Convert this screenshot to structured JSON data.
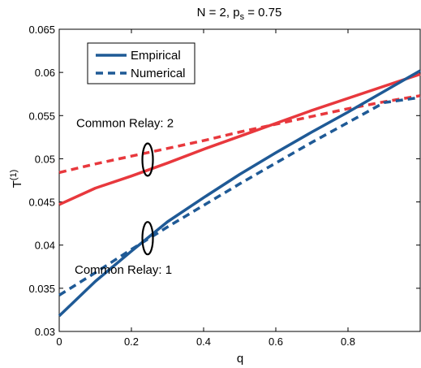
{
  "chart_data": {
    "type": "line",
    "title": "N = 2, p",
    "title_subscript": "s",
    "title_suffix": " = 0.75",
    "xlabel": "q",
    "ylabel": "T",
    "ylabel_superscript": "(1)",
    "xlim": [
      0,
      1
    ],
    "ylim": [
      0.03,
      0.065
    ],
    "xticks": [
      0,
      0.2,
      0.4,
      0.6,
      0.8
    ],
    "xtick_labels": [
      "0",
      "0.2",
      "0.4",
      "0.6",
      "0.8"
    ],
    "yticks": [
      0.03,
      0.035,
      0.04,
      0.045,
      0.05,
      0.055,
      0.06,
      0.065
    ],
    "ytick_labels": [
      "0.03",
      "0.035",
      "0.04",
      "0.045",
      "0.05",
      "0.055",
      "0.06",
      "0.065"
    ],
    "grid": false,
    "legend_position": "top-left",
    "legend": [
      {
        "label": "Empirical",
        "style": "solid"
      },
      {
        "label": "Numerical",
        "style": "dashed"
      }
    ],
    "annotations": [
      {
        "text": "Common Relay: 2",
        "target_x": 0.245,
        "target_y": 0.0499
      },
      {
        "text": "Common Relay: 1",
        "target_x": 0.245,
        "target_y": 0.0408
      }
    ],
    "series": [
      {
        "style": "solid",
        "color": "#e8383d",
        "x": [
          0,
          0.1,
          0.2,
          0.3,
          0.4,
          0.5,
          0.6,
          0.7,
          0.8,
          0.9,
          1.0
        ],
        "y": [
          0.0447,
          0.0466,
          0.048,
          0.0495,
          0.0511,
          0.0526,
          0.0541,
          0.0556,
          0.057,
          0.0584,
          0.0598
        ]
      },
      {
        "style": "dashed",
        "color": "#e8383d",
        "x": [
          0,
          0.1,
          0.2,
          0.3,
          0.4,
          0.5,
          0.6,
          0.7,
          0.8,
          0.9,
          1.0
        ],
        "y": [
          0.0484,
          0.0494,
          0.0503,
          0.0512,
          0.0521,
          0.0531,
          0.054,
          0.0549,
          0.0558,
          0.0566,
          0.0573
        ]
      },
      {
        "style": "solid",
        "color": "#1f5a96",
        "x": [
          0,
          0.1,
          0.2,
          0.3,
          0.4,
          0.5,
          0.6,
          0.7,
          0.8,
          0.9,
          1.0
        ],
        "y": [
          0.0318,
          0.0358,
          0.0393,
          0.0427,
          0.0455,
          0.0482,
          0.0507,
          0.0531,
          0.0554,
          0.0578,
          0.0602
        ]
      },
      {
        "style": "dashed",
        "color": "#1f5a96",
        "x": [
          0,
          0.1,
          0.2,
          0.3,
          0.4,
          0.5,
          0.6,
          0.7,
          0.8,
          0.9,
          1.0
        ],
        "y": [
          0.0342,
          0.0368,
          0.0395,
          0.0421,
          0.0446,
          0.0471,
          0.0495,
          0.0519,
          0.0542,
          0.0565,
          0.0571
        ]
      }
    ]
  }
}
